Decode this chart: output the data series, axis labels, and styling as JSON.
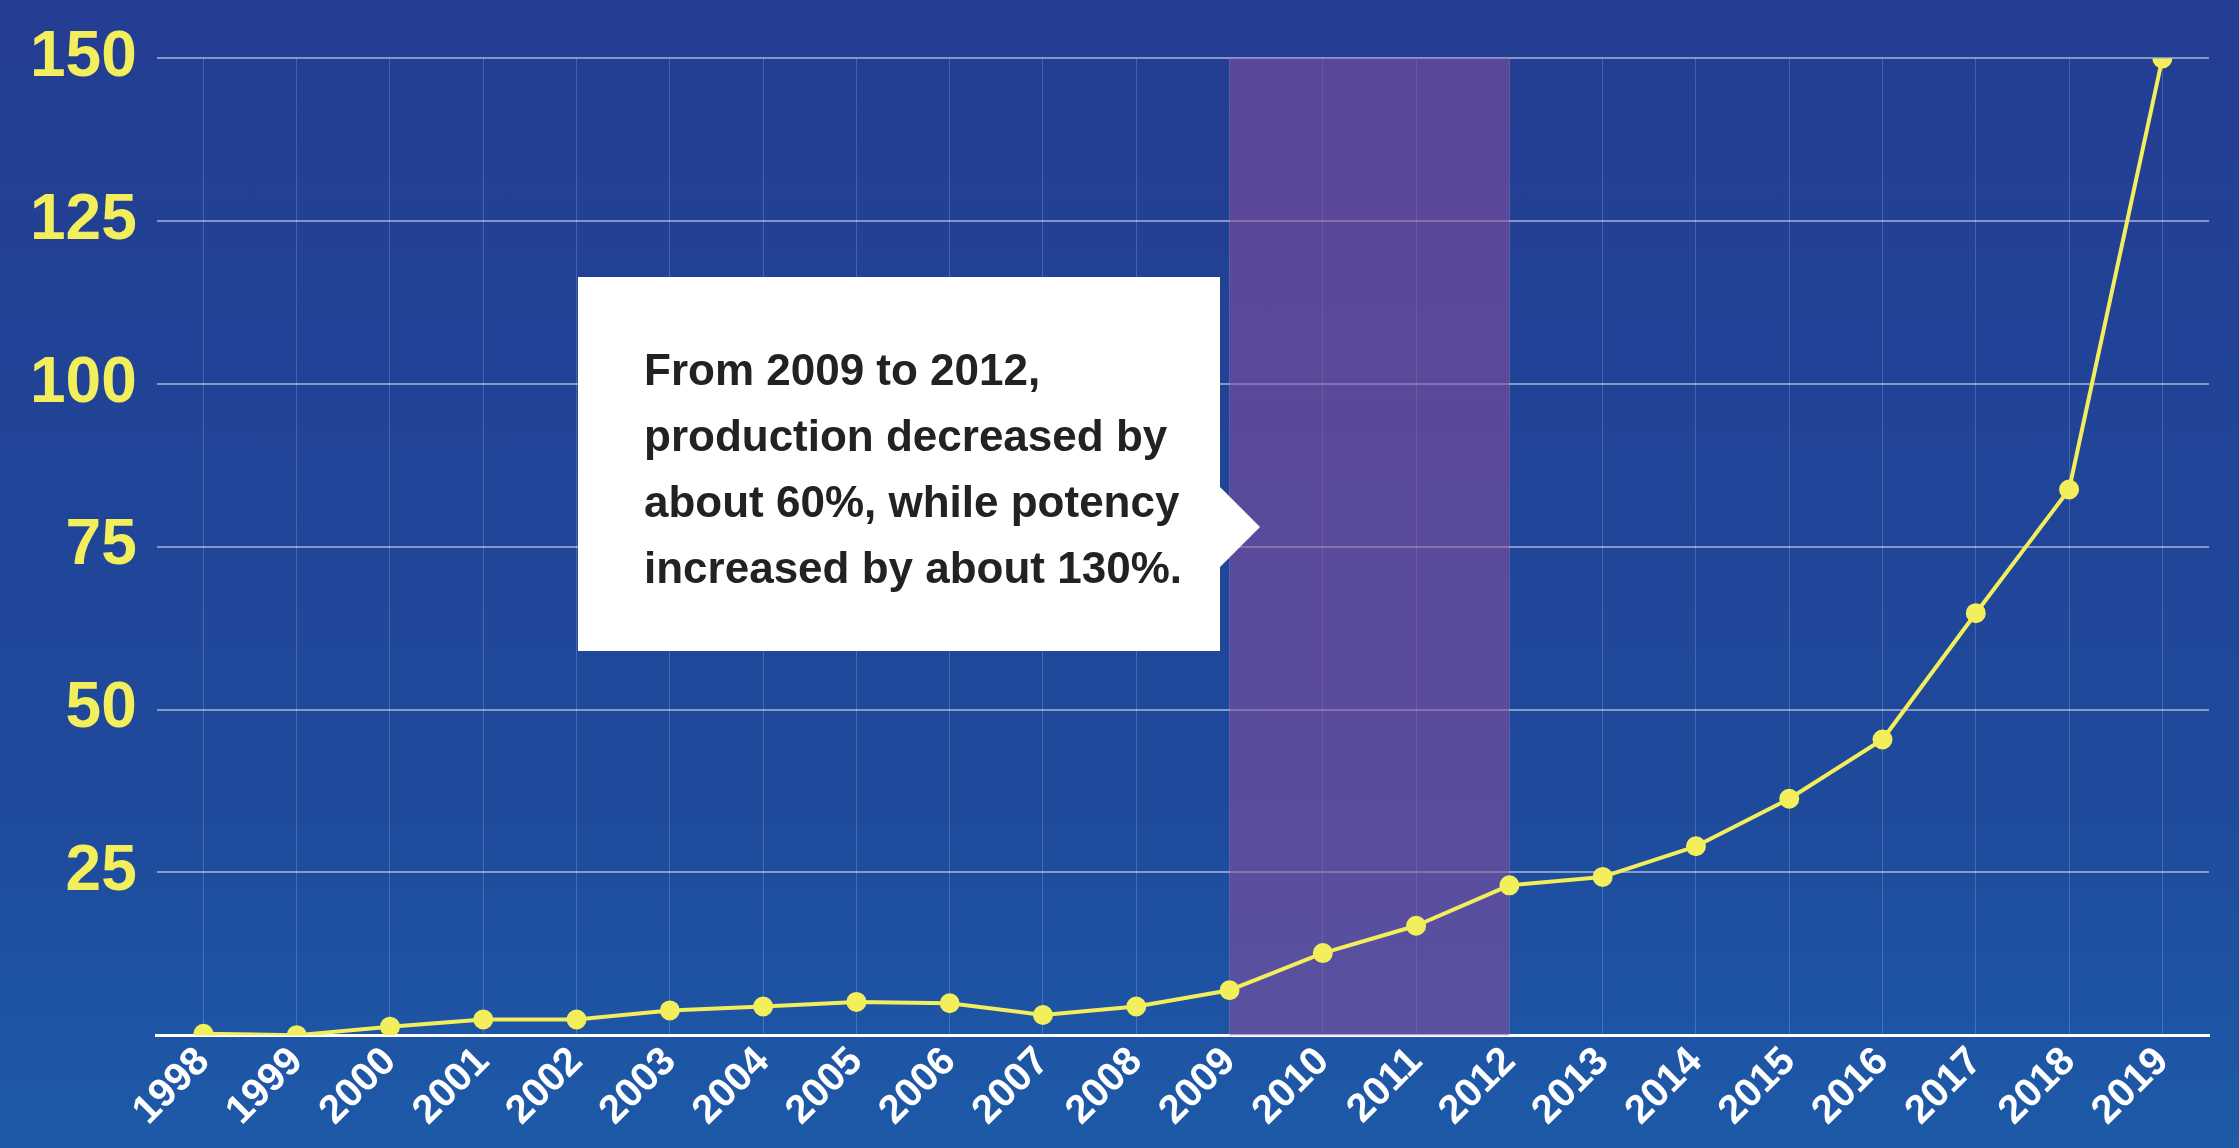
{
  "chart_data": {
    "type": "line",
    "categories": [
      "1998",
      "1999",
      "2000",
      "2001",
      "2002",
      "2003",
      "2004",
      "2005",
      "2006",
      "2007",
      "2008",
      "2009",
      "2010",
      "2011",
      "2012",
      "2013",
      "2014",
      "2015",
      "2016",
      "2017",
      "2018",
      "2019"
    ],
    "series": [
      {
        "color": "#f2ee5c",
        "values": [
          0.2,
          0,
          1.3,
          2.4,
          2.4,
          3.8,
          4.4,
          5.1,
          4.9,
          3.1,
          4.4,
          6.9,
          12.6,
          16.8,
          23,
          24.3,
          29,
          36.3,
          45.4,
          64.8,
          83.8,
          150
        ]
      }
    ],
    "ylim": [
      0,
      150
    ],
    "yticks": [
      {
        "value": 0,
        "label": null
      },
      25,
      50,
      75,
      100,
      125,
      150
    ],
    "grid": true,
    "marker": "circle",
    "line_style": "solid",
    "bands": [
      {
        "axis": "x",
        "from": "2009",
        "to": "2012",
        "color": "#8a4f9e"
      }
    ],
    "annotations": [
      "From 2009 to 2012, production decreased by about 60%, while potency increased by about 130%."
    ]
  }
}
